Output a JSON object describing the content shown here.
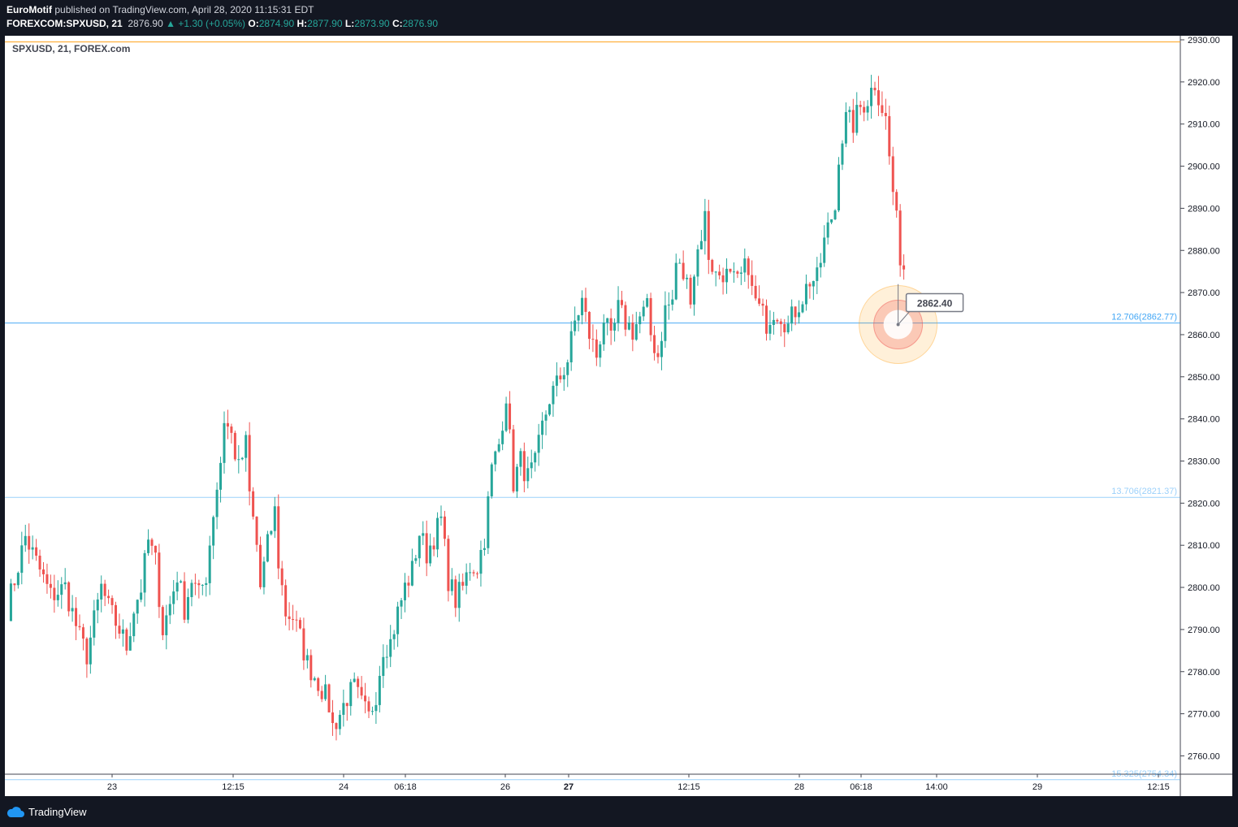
{
  "header": {
    "publisher": "EuroMotif",
    "published_text": "published on TradingView.com, April 28, 2020 11:15:31 EDT",
    "symbol": "FOREXCOM:SPXUSD, 21",
    "last": "2876.90",
    "change": "▲ +1.30 (+0.05%)",
    "o_label": "O:",
    "o_value": "2874.90",
    "h_label": "H:",
    "h_value": "2877.90",
    "l_label": "L:",
    "l_value": "2873.90",
    "c_label": "C:",
    "c_value": "2876.90"
  },
  "legend": "SPXUSD, 21, FOREX.com",
  "footer": {
    "brand": "TradingView"
  },
  "colors": {
    "up": "#26a69a",
    "down": "#ef5350",
    "fib": "#2196f3",
    "resistance": "#ff9800",
    "callout_border": "#787b86"
  },
  "chart_data": {
    "type": "candlestick",
    "ylim": [
      2753,
      2931
    ],
    "y_ticks": [
      "2760.00",
      "2770.00",
      "2780.00",
      "2790.00",
      "2800.00",
      "2810.00",
      "2820.00",
      "2830.00",
      "2840.00",
      "2850.00",
      "2860.00",
      "2870.00",
      "2880.00",
      "2890.00",
      "2900.00",
      "2910.00",
      "2920.00",
      "2930.00"
    ],
    "x_ticks": [
      "23",
      "12:15",
      "24",
      "06:18",
      "26",
      "27",
      "12:15",
      "28",
      "06:18",
      "14:00",
      "29",
      "12:15"
    ],
    "x_ticks_bold": [
      false,
      false,
      false,
      false,
      false,
      true,
      false,
      false,
      false,
      false,
      false,
      false
    ],
    "h_lines": [
      {
        "price": 2862.77,
        "label": "12.706(2862.77)"
      },
      {
        "price": 2821.37,
        "label": "13.706(2821.37)"
      },
      {
        "price": 2754.34,
        "label": "15.325(2754.34)"
      },
      {
        "price": 2929.5,
        "label": ""
      }
    ],
    "marker": {
      "price": 2862.4,
      "label": "2862.40"
    },
    "path": [
      [
        0,
        2795
      ],
      [
        5,
        2812
      ],
      [
        8,
        2806
      ],
      [
        12,
        2798
      ],
      [
        16,
        2800
      ],
      [
        20,
        2788
      ],
      [
        22,
        2784
      ],
      [
        26,
        2800
      ],
      [
        28,
        2795
      ],
      [
        31,
        2790
      ],
      [
        33,
        2786
      ],
      [
        35,
        2795
      ],
      [
        37,
        2800
      ],
      [
        39,
        2811
      ],
      [
        41,
        2806
      ],
      [
        43,
        2790
      ],
      [
        45,
        2796
      ],
      [
        47,
        2803
      ],
      [
        49,
        2795
      ],
      [
        51,
        2802
      ],
      [
        53,
        2798
      ],
      [
        55,
        2803
      ],
      [
        57,
        2818
      ],
      [
        59,
        2830
      ],
      [
        60,
        2840
      ],
      [
        62,
        2836
      ],
      [
        64,
        2828
      ],
      [
        66,
        2834
      ],
      [
        67,
        2822
      ],
      [
        69,
        2810
      ],
      [
        70,
        2800
      ],
      [
        72,
        2810
      ],
      [
        74,
        2818
      ],
      [
        75,
        2806
      ],
      [
        77,
        2794
      ],
      [
        79,
        2793
      ],
      [
        81,
        2788
      ],
      [
        83,
        2782
      ],
      [
        85,
        2779
      ],
      [
        87,
        2776
      ],
      [
        89,
        2772
      ],
      [
        90,
        2767
      ],
      [
        92,
        2770
      ],
      [
        94,
        2774
      ],
      [
        96,
        2776
      ],
      [
        98,
        2772
      ],
      [
        100,
        2769
      ],
      [
        102,
        2775
      ],
      [
        104,
        2786
      ],
      [
        106,
        2787
      ],
      [
        108,
        2794
      ],
      [
        110,
        2800
      ],
      [
        112,
        2804
      ],
      [
        114,
        2813
      ],
      [
        116,
        2808
      ],
      [
        118,
        2812
      ],
      [
        120,
        2816
      ],
      [
        122,
        2802
      ],
      [
        124,
        2797
      ],
      [
        126,
        2800
      ],
      [
        128,
        2805
      ],
      [
        130,
        2805
      ],
      [
        132,
        2812
      ],
      [
        134,
        2828
      ],
      [
        136,
        2834
      ],
      [
        138,
        2846
      ],
      [
        139,
        2835
      ],
      [
        140,
        2825
      ],
      [
        142,
        2830
      ],
      [
        144,
        2826
      ],
      [
        146,
        2829
      ],
      [
        148,
        2838
      ],
      [
        150,
        2845
      ],
      [
        152,
        2848
      ],
      [
        154,
        2852
      ],
      [
        155,
        2854
      ],
      [
        157,
        2863
      ],
      [
        159,
        2868
      ],
      [
        161,
        2860
      ],
      [
        163,
        2855
      ],
      [
        165,
        2864
      ],
      [
        167,
        2858
      ],
      [
        169,
        2866
      ],
      [
        171,
        2863
      ],
      [
        173,
        2861
      ],
      [
        175,
        2864
      ],
      [
        177,
        2866
      ],
      [
        178,
        2860
      ],
      [
        180,
        2855
      ],
      [
        182,
        2866
      ],
      [
        184,
        2868
      ],
      [
        185,
        2877
      ],
      [
        187,
        2874
      ],
      [
        189,
        2870
      ],
      [
        191,
        2880
      ],
      [
        193,
        2888
      ],
      [
        194,
        2879
      ],
      [
        196,
        2874
      ],
      [
        198,
        2875
      ],
      [
        200,
        2873
      ],
      [
        202,
        2872
      ],
      [
        205,
        2877
      ],
      [
        206,
        2870
      ],
      [
        208,
        2866
      ],
      [
        210,
        2863
      ],
      [
        212,
        2866
      ],
      [
        214,
        2865
      ],
      [
        216,
        2862
      ],
      [
        218,
        2866
      ],
      [
        220,
        2869
      ],
      [
        222,
        2873
      ],
      [
        224,
        2873
      ],
      [
        226,
        2882
      ],
      [
        228,
        2888
      ],
      [
        229,
        2890
      ],
      [
        230,
        2903
      ],
      [
        232,
        2911
      ],
      [
        234,
        2910
      ],
      [
        236,
        2914
      ],
      [
        238,
        2916
      ],
      [
        240,
        2920
      ],
      [
        241,
        2917
      ],
      [
        243,
        2911
      ],
      [
        244,
        2902
      ],
      [
        245,
        2894
      ],
      [
        247,
        2879
      ],
      [
        248,
        2876
      ]
    ]
  }
}
